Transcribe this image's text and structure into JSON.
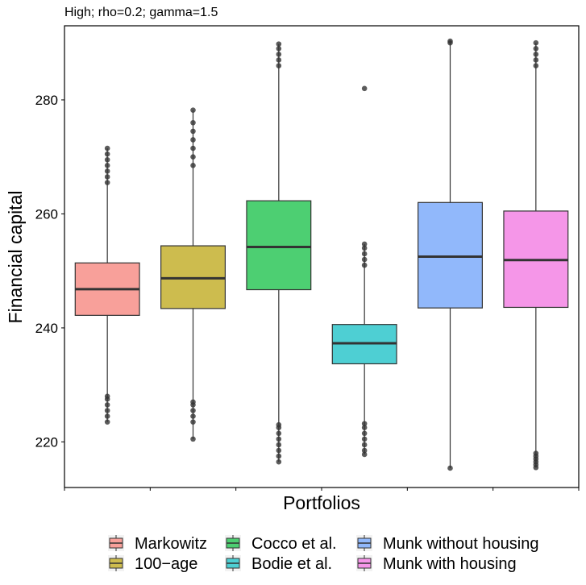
{
  "chart_data": {
    "type": "boxplot",
    "title": "High; rho=0.2; gamma=1.5",
    "xlabel": "Portfolios",
    "ylabel": "Financial capital",
    "ylim": [
      212,
      293
    ],
    "yticks": [
      220,
      240,
      260,
      280
    ],
    "grid": false,
    "legend_position": "bottom",
    "series": [
      {
        "name": "Markowitz",
        "color": "#F8A09A",
        "whisker_low": 223.5,
        "q1": 242.2,
        "median": 246.8,
        "q3": 251.4,
        "whisker_high": 271.5,
        "outliers_low": [
          223.5,
          224.5,
          225.5,
          226.5,
          227.5,
          228.0
        ],
        "outliers_high": [
          265.5,
          266.5,
          267.5,
          268.5,
          269.5,
          270.5,
          271.5
        ]
      },
      {
        "name": "100−age",
        "color": "#CDBC4E",
        "whisker_low": 220.5,
        "q1": 243.4,
        "median": 248.7,
        "q3": 254.4,
        "whisker_high": 278.2,
        "outliers_low": [
          220.5,
          223.5,
          224.5,
          225.5,
          226.5,
          227.0
        ],
        "outliers_high": [
          268.5,
          270.0,
          271.5,
          273.0,
          274.5,
          276.0,
          278.2
        ]
      },
      {
        "name": "Cocco et al.",
        "color": "#4DCF72",
        "whisker_low": 216.5,
        "q1": 246.7,
        "median": 254.2,
        "q3": 262.3,
        "whisker_high": 289.8,
        "outliers_low": [
          216.5,
          217.5,
          218.5,
          219.5,
          220.5,
          221.5,
          222.5,
          223.0
        ],
        "outliers_high": [
          286.0,
          287.0,
          288.0,
          289.0,
          289.8
        ]
      },
      {
        "name": "Bodie et al.",
        "color": "#4ECFD3",
        "whisker_low": 217.8,
        "q1": 233.7,
        "median": 237.3,
        "q3": 240.6,
        "whisker_high": 254.7,
        "outliers_low": [
          217.8,
          218.5,
          219.5,
          220.5,
          221.5,
          222.5,
          223.2
        ],
        "outliers_high": [
          251.0,
          252.0,
          253.0,
          254.0,
          254.7,
          282.0
        ]
      },
      {
        "name": "Munk without housing",
        "color": "#91B8FB",
        "whisker_low": 215.4,
        "q1": 243.5,
        "median": 252.5,
        "q3": 262.0,
        "whisker_high": 290.3,
        "outliers_low": [
          215.4
        ],
        "outliers_high": [
          290.0,
          290.3
        ]
      },
      {
        "name": "Munk with housing",
        "color": "#F596E8",
        "whisker_low": 215.5,
        "q1": 243.6,
        "median": 251.9,
        "q3": 260.5,
        "whisker_high": 290.0,
        "outliers_low": [
          215.5,
          216.0,
          216.5,
          217.0,
          217.5,
          218.0
        ],
        "outliers_high": [
          286.0,
          287.0,
          288.0,
          289.0,
          290.0
        ]
      }
    ]
  }
}
